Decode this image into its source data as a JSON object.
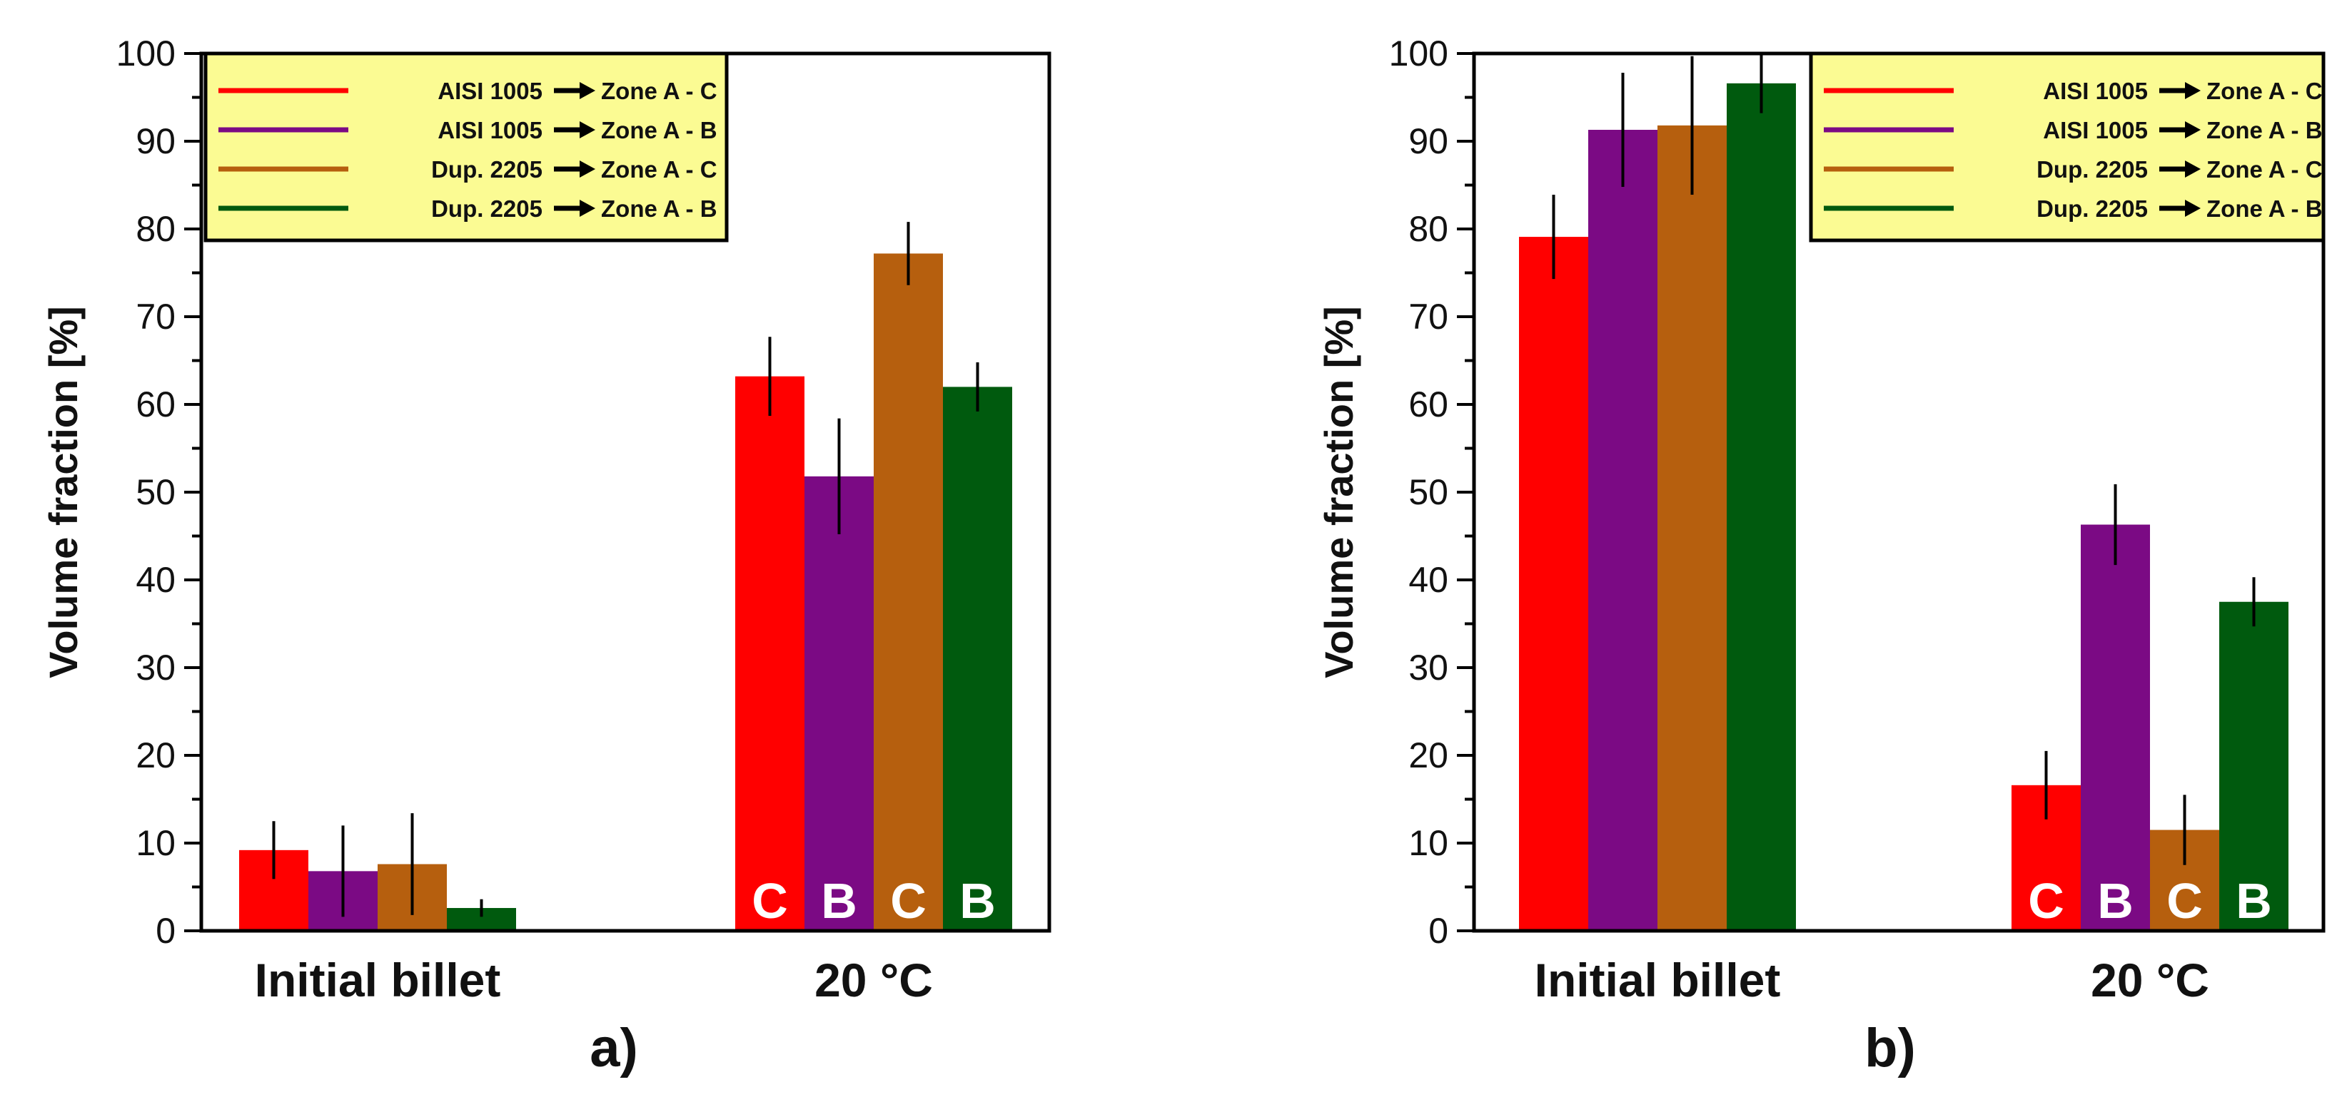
{
  "chart_data": [
    {
      "type": "bar",
      "panel_label": "a)",
      "ylabel": "Volume fraction [%]",
      "ylim": [
        0,
        100
      ],
      "yticks": [
        "0",
        "10",
        "20",
        "30",
        "40",
        "50",
        "60",
        "70",
        "80",
        "90",
        "100"
      ],
      "categories": [
        "Initial billet",
        "20 °C"
      ],
      "series": [
        {
          "name": "AISI 1005 → Zone A - C",
          "color": "#ff0000",
          "values": [
            9.2,
            63.2
          ],
          "errors": [
            3.3,
            4.5
          ],
          "letters": [
            "",
            "C"
          ]
        },
        {
          "name": "AISI 1005 → Zone A - B",
          "color": "#7b0a84",
          "values": [
            6.8,
            51.8
          ],
          "errors": [
            5.2,
            6.6
          ],
          "letters": [
            "",
            "B"
          ]
        },
        {
          "name": "Dup. 2205 → Zone A - C",
          "color": "#b65f0e",
          "values": [
            7.6,
            77.2
          ],
          "errors": [
            5.8,
            3.6
          ],
          "letters": [
            "",
            "C"
          ]
        },
        {
          "name": "Dup. 2205 → Zone A - B",
          "color": "#005a0e",
          "values": [
            2.6,
            62.0
          ],
          "errors": [
            1.0,
            2.8
          ],
          "letters": [
            "",
            "B"
          ]
        }
      ],
      "legend": {
        "position": "top-left",
        "entries": [
          {
            "material": "AISI 1005",
            "zone": "Zone A - C"
          },
          {
            "material": "AISI 1005",
            "zone": "Zone A - B"
          },
          {
            "material": "Dup. 2205",
            "zone": "Zone A - C"
          },
          {
            "material": "Dup. 2205",
            "zone": "Zone A - B"
          }
        ]
      }
    },
    {
      "type": "bar",
      "panel_label": "b)",
      "ylabel": "Volume fraction [%]",
      "ylim": [
        0,
        100
      ],
      "yticks": [
        "0",
        "10",
        "20",
        "30",
        "40",
        "50",
        "60",
        "70",
        "80",
        "90",
        "100"
      ],
      "categories": [
        "Initial billet",
        "20 °C"
      ],
      "series": [
        {
          "name": "AISI 1005 → Zone A - C",
          "color": "#ff0000",
          "values": [
            79.1,
            16.6
          ],
          "errors": [
            4.8,
            3.9
          ],
          "letters": [
            "",
            "C"
          ]
        },
        {
          "name": "AISI 1005 → Zone A - B",
          "color": "#7b0a84",
          "values": [
            91.3,
            46.3
          ],
          "errors": [
            6.5,
            4.6
          ],
          "letters": [
            "",
            "B"
          ]
        },
        {
          "name": "Dup. 2205 → Zone A - C",
          "color": "#b65f0e",
          "values": [
            91.8,
            11.5
          ],
          "errors": [
            7.9,
            4.0
          ],
          "letters": [
            "",
            "C"
          ]
        },
        {
          "name": "Dup. 2205 → Zone A - B",
          "color": "#005a0e",
          "values": [
            96.6,
            37.5
          ],
          "errors": [
            3.4,
            2.8
          ],
          "letters": [
            "",
            "B"
          ]
        }
      ],
      "legend": {
        "position": "top-right",
        "entries": [
          {
            "material": "AISI 1005",
            "zone": "Zone A - C"
          },
          {
            "material": "AISI 1005",
            "zone": "Zone A - B"
          },
          {
            "material": "Dup. 2205",
            "zone": "Zone A - C"
          },
          {
            "material": "Dup. 2205",
            "zone": "Zone A - B"
          }
        ]
      }
    }
  ]
}
